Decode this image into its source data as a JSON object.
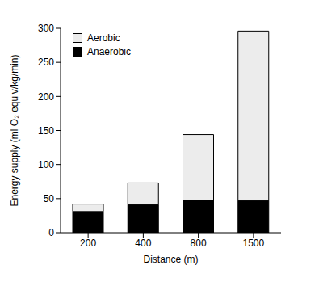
{
  "chart_data": {
    "type": "bar",
    "stacked": true,
    "categories": [
      "200",
      "400",
      "800",
      "1500"
    ],
    "x_label": "Distance (m)",
    "y_label": "Energy supply (ml O₂ equiv/kg/min)",
    "ylim": [
      0,
      300
    ],
    "yticks": [
      0,
      50,
      100,
      150,
      200,
      250,
      300
    ],
    "grid": false,
    "legend": "upper left",
    "series": [
      {
        "name": "Anaerobic",
        "color": "#000000",
        "values": [
          31,
          41,
          48,
          47
        ]
      },
      {
        "name": "Aerobic",
        "color": "#ececec",
        "values": [
          11,
          32,
          96,
          249
        ]
      }
    ]
  }
}
